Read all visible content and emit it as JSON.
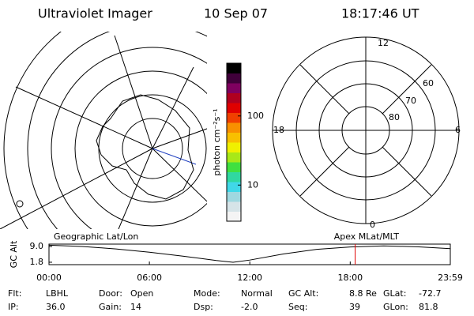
{
  "header": {
    "title": "Ultraviolet Imager",
    "date": "10 Sep 07",
    "time": "18:17:46 UT"
  },
  "colorbar": {
    "label": "photon cm⁻²s⁻¹",
    "log": true,
    "lim": [
      3,
      580
    ],
    "ticks": [
      10,
      100
    ],
    "colors": [
      "#f4f4f4",
      "#d6e4e8",
      "#9fd8e0",
      "#40d8e8",
      "#30d8a0",
      "#40e040",
      "#a8e818",
      "#f0f000",
      "#f8c000",
      "#f89000",
      "#f04000",
      "#e00000",
      "#b00020",
      "#800060",
      "#40003a",
      "#000000"
    ]
  },
  "polar": {
    "top": "12",
    "left": "18",
    "right": "6",
    "bottom": "0",
    "rings": [
      "60",
      "70",
      "80"
    ]
  },
  "timeline": {
    "ylabel": "GC Alt",
    "left_title": "Geographic Lat/Lon",
    "right_title": "Apex MLat/MLT",
    "ylim": [
      0.7,
      10.1
    ],
    "yticks": [
      {
        "value": 9,
        "label": "9.0"
      },
      1.8
    ],
    "xlim": [
      0,
      23.98
    ],
    "xticks": [
      {
        "value": 0,
        "label": "00:00"
      },
      {
        "value": 6,
        "label": "06:00"
      },
      {
        "value": 12,
        "label": "12:00"
      },
      {
        "value": 18,
        "label": "18:00"
      },
      {
        "value": 23.98,
        "label": "23:59"
      }
    ],
    "x": [
      0,
      2,
      4,
      6,
      8,
      10,
      11,
      12,
      14,
      16,
      18,
      20,
      22,
      23.98
    ],
    "values": [
      9.6,
      9.0,
      7.9,
      6.4,
      4.6,
      2.6,
      1.8,
      2.8,
      5.6,
      7.7,
      8.8,
      9.3,
      8.9,
      8.0
    ],
    "line_color": "#000000",
    "marker": 18.296,
    "marker_color": "#e00000"
  },
  "footer": {
    "rows": [
      [
        {
          "label": "Flt:",
          "value": "LBHL"
        },
        {
          "label": "Door:",
          "value": "Open"
        },
        {
          "label": "Mode:",
          "value": "Normal"
        },
        {
          "label": "GC Alt:",
          "value": "8.8 Re"
        },
        {
          "label": "GLat:",
          "value": "-72.7"
        }
      ],
      [
        {
          "label": "IP:",
          "value": "36.0"
        },
        {
          "label": "Gain:",
          "value": "14"
        },
        {
          "label": "Dsp:",
          "value": "-2.0"
        },
        {
          "label": "Seq:",
          "value": "39"
        },
        {
          "label": "GLon:",
          "value": "81.8"
        }
      ]
    ]
  }
}
